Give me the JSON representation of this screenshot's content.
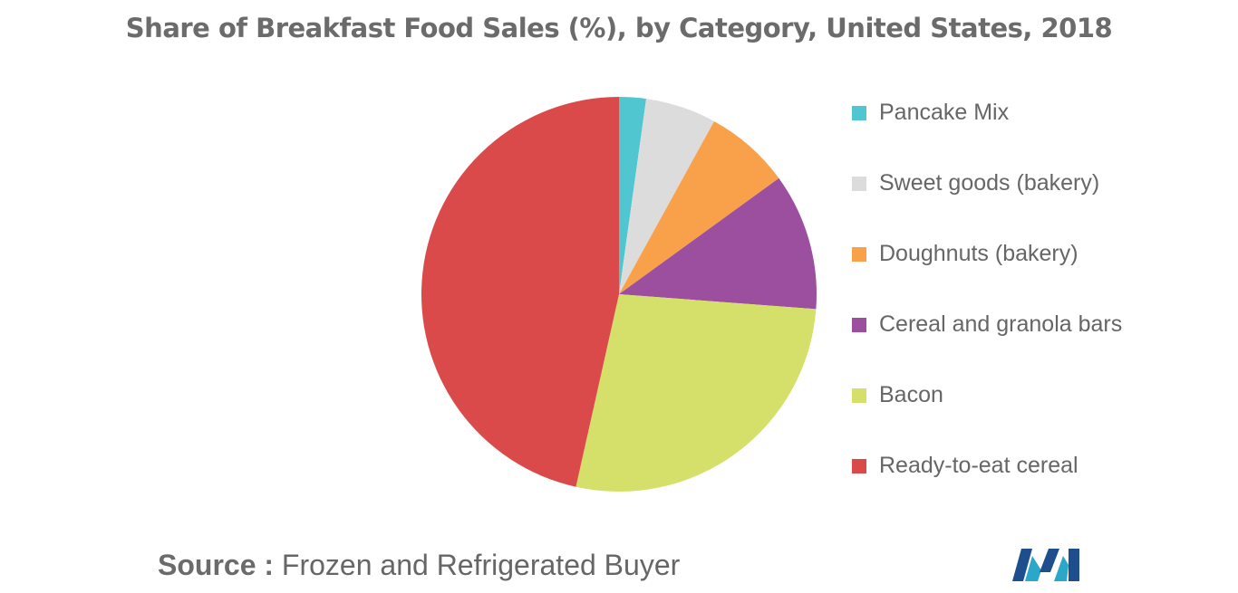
{
  "title": "Share of Breakfast Food Sales (%), by Category, United States, 2018",
  "source": {
    "label": "Source :",
    "text": "Frozen and Refrigerated Buyer"
  },
  "chart_data": {
    "type": "pie",
    "title": "Share of Breakfast Food Sales (%), by Category, United States, 2018",
    "legend_position": "right",
    "categories": [
      "Pancake Mix",
      "Sweet goods (bakery)",
      "Doughnuts (bakery)",
      "Cereal and granola bars",
      "Bacon",
      "Ready-to-eat cereal"
    ],
    "values": [
      2.2,
      5.8,
      7.0,
      11.2,
      27.3,
      46.5
    ],
    "colors": [
      "#4fc6d0",
      "#dcdcdc",
      "#f9a04b",
      "#9b4f9e",
      "#d4e06a",
      "#db4a4a"
    ]
  },
  "logo": {
    "icon": "mordor-logo-icon",
    "colors": [
      "#1f4e8c",
      "#2aa7c9"
    ]
  }
}
